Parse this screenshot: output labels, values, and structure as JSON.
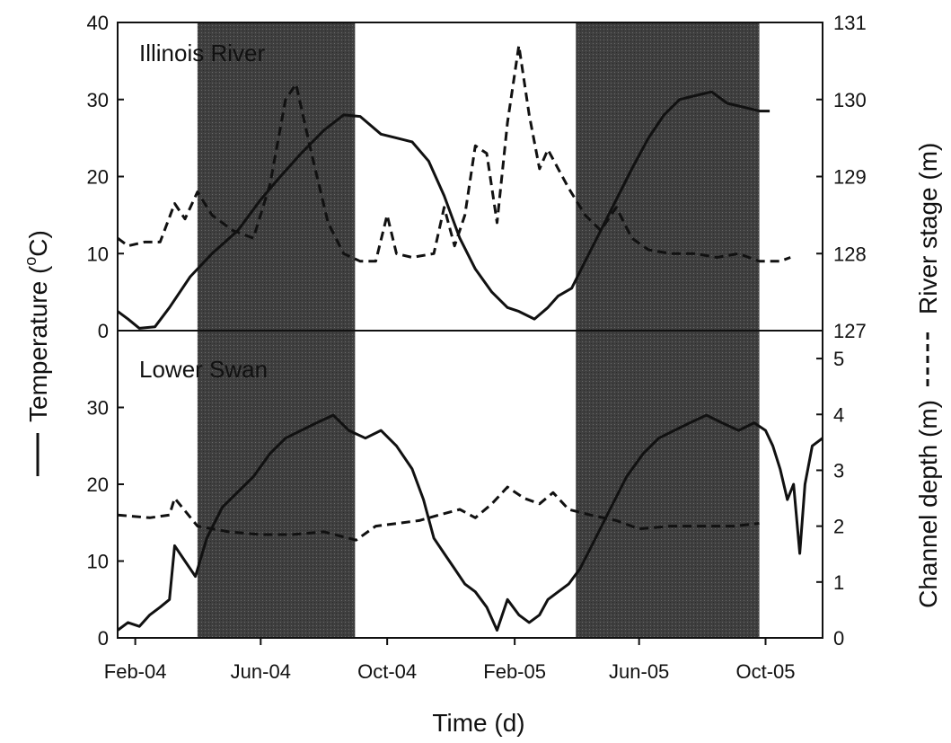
{
  "chart_data": {
    "type": "line",
    "xlabel": "Time (d)",
    "x_tick_labels": [
      "Feb-04",
      "Jun-04",
      "Oct-04",
      "Feb-05",
      "Jun-05",
      "Oct-05"
    ],
    "x_tick_dates": [
      "2004-02-01",
      "2004-06-01",
      "2004-10-01",
      "2005-02-01",
      "2005-06-01",
      "2005-10-01"
    ],
    "x_range": [
      "2004-01-15",
      "2005-11-25"
    ],
    "shaded_periods": [
      [
        "2004-04-01",
        "2004-08-31"
      ],
      [
        "2005-04-01",
        "2005-09-25"
      ]
    ],
    "left_axis_label": {
      "prefix": "Temperature (",
      "sup": "o",
      "suffix": "C)"
    },
    "right_axis_label": {
      "top": "River stage (m)",
      "bottom": "Channel depth (m)"
    },
    "panels": [
      {
        "label": "Illinois River",
        "y_left_range": [
          0,
          40
        ],
        "y_left_ticks": [
          "0",
          "10",
          "20",
          "30",
          "40"
        ],
        "y_right_range": [
          127,
          131
        ],
        "y_right_ticks": [
          "127",
          "128",
          "129",
          "130",
          "131"
        ],
        "series": [
          {
            "axis": "left",
            "style": "solid",
            "points": [
              [
                "2004-01-15",
                2.5
              ],
              [
                "2004-01-25",
                1.5
              ],
              [
                "2004-02-05",
                0.3
              ],
              [
                "2004-02-20",
                0.5
              ],
              [
                "2004-03-05",
                3
              ],
              [
                "2004-03-25",
                7
              ],
              [
                "2004-04-15",
                10
              ],
              [
                "2004-05-10",
                13
              ],
              [
                "2004-06-01",
                17
              ],
              [
                "2004-06-20",
                20
              ],
              [
                "2004-07-10",
                23
              ],
              [
                "2004-08-01",
                26
              ],
              [
                "2004-08-20",
                28
              ],
              [
                "2004-09-05",
                27.8
              ],
              [
                "2004-09-25",
                25.5
              ],
              [
                "2004-10-10",
                25
              ],
              [
                "2004-10-25",
                24.5
              ],
              [
                "2004-11-10",
                22
              ],
              [
                "2004-11-25",
                17.5
              ],
              [
                "2004-12-10",
                12
              ],
              [
                "2004-12-25",
                8
              ],
              [
                "2005-01-10",
                5
              ],
              [
                "2005-01-25",
                3
              ],
              [
                "2005-02-05",
                2.5
              ],
              [
                "2005-02-20",
                1.5
              ],
              [
                "2005-03-05",
                3
              ],
              [
                "2005-03-15",
                4.5
              ],
              [
                "2005-03-28",
                5.5
              ],
              [
                "2005-04-10",
                9
              ],
              [
                "2005-04-25",
                13
              ],
              [
                "2005-05-10",
                17
              ],
              [
                "2005-05-25",
                21
              ],
              [
                "2005-06-10",
                25
              ],
              [
                "2005-06-25",
                28
              ],
              [
                "2005-07-10",
                30
              ],
              [
                "2005-07-25",
                30.5
              ],
              [
                "2005-08-10",
                31
              ],
              [
                "2005-08-25",
                29.5
              ],
              [
                "2005-09-10",
                29
              ],
              [
                "2005-09-25",
                28.5
              ],
              [
                "2005-10-05",
                28.5
              ]
            ]
          },
          {
            "axis": "right",
            "style": "dashed",
            "points": [
              [
                "2004-01-15",
                128.2
              ],
              [
                "2004-01-25",
                128.1
              ],
              [
                "2004-02-10",
                128.15
              ],
              [
                "2004-02-25",
                128.15
              ],
              [
                "2004-03-10",
                128.65
              ],
              [
                "2004-03-20",
                128.45
              ],
              [
                "2004-04-01",
                128.8
              ],
              [
                "2004-04-15",
                128.5
              ],
              [
                "2004-05-05",
                128.3
              ],
              [
                "2004-05-25",
                128.2
              ],
              [
                "2004-06-10",
                128.9
              ],
              [
                "2004-06-25",
                130.0
              ],
              [
                "2004-07-05",
                130.2
              ],
              [
                "2004-07-20",
                129.3
              ],
              [
                "2004-08-05",
                128.4
              ],
              [
                "2004-08-20",
                128.0
              ],
              [
                "2004-09-05",
                127.9
              ],
              [
                "2004-09-20",
                127.9
              ],
              [
                "2004-10-01",
                128.5
              ],
              [
                "2004-10-10",
                128.0
              ],
              [
                "2004-10-25",
                127.95
              ],
              [
                "2004-11-15",
                128.0
              ],
              [
                "2004-11-25",
                128.6
              ],
              [
                "2004-12-05",
                128.1
              ],
              [
                "2004-12-15",
                128.5
              ],
              [
                "2004-12-25",
                129.4
              ],
              [
                "2005-01-05",
                129.3
              ],
              [
                "2005-01-15",
                128.4
              ],
              [
                "2005-01-25",
                129.7
              ],
              [
                "2005-02-05",
                130.7
              ],
              [
                "2005-02-15",
                129.8
              ],
              [
                "2005-02-25",
                129.1
              ],
              [
                "2005-03-05",
                129.35
              ],
              [
                "2005-03-15",
                129.1
              ],
              [
                "2005-03-25",
                128.85
              ],
              [
                "2005-04-10",
                128.5
              ],
              [
                "2005-04-25",
                128.3
              ],
              [
                "2005-05-10",
                128.6
              ],
              [
                "2005-05-25",
                128.2
              ],
              [
                "2005-06-10",
                128.05
              ],
              [
                "2005-07-01",
                128.0
              ],
              [
                "2005-07-25",
                128.0
              ],
              [
                "2005-08-15",
                127.95
              ],
              [
                "2005-09-05",
                128.0
              ],
              [
                "2005-09-25",
                127.9
              ],
              [
                "2005-10-15",
                127.9
              ],
              [
                "2005-10-25",
                127.95
              ]
            ]
          }
        ]
      },
      {
        "label": "Lower Swan",
        "y_left_range": [
          0,
          40
        ],
        "y_left_ticks": [
          "0",
          "10",
          "20",
          "30"
        ],
        "y_right_range": [
          0,
          5.5
        ],
        "y_right_ticks": [
          "0",
          "1",
          "2",
          "3",
          "4",
          "5"
        ],
        "series": [
          {
            "axis": "left",
            "style": "solid",
            "points": [
              [
                "2004-01-15",
                1
              ],
              [
                "2004-01-25",
                2
              ],
              [
                "2004-02-05",
                1.5
              ],
              [
                "2004-02-15",
                3
              ],
              [
                "2004-02-25",
                4
              ],
              [
                "2004-03-05",
                5
              ],
              [
                "2004-03-10",
                12
              ],
              [
                "2004-03-20",
                10
              ],
              [
                "2004-03-30",
                8
              ],
              [
                "2004-04-10",
                13
              ],
              [
                "2004-04-25",
                17
              ],
              [
                "2004-05-10",
                19
              ],
              [
                "2004-05-25",
                21
              ],
              [
                "2004-06-10",
                24
              ],
              [
                "2004-06-25",
                26
              ],
              [
                "2004-07-10",
                27
              ],
              [
                "2004-07-25",
                28
              ],
              [
                "2004-08-10",
                29
              ],
              [
                "2004-08-25",
                27
              ],
              [
                "2004-09-10",
                26
              ],
              [
                "2004-09-25",
                27
              ],
              [
                "2004-10-10",
                25
              ],
              [
                "2004-10-25",
                22
              ],
              [
                "2004-11-05",
                18
              ],
              [
                "2004-11-15",
                13
              ],
              [
                "2004-11-25",
                11
              ],
              [
                "2004-12-05",
                9
              ],
              [
                "2004-12-15",
                7
              ],
              [
                "2004-12-25",
                6
              ],
              [
                "2005-01-05",
                4
              ],
              [
                "2005-01-15",
                1
              ],
              [
                "2005-01-25",
                5
              ],
              [
                "2005-02-05",
                3
              ],
              [
                "2005-02-15",
                2
              ],
              [
                "2005-02-25",
                3
              ],
              [
                "2005-03-05",
                5
              ],
              [
                "2005-03-15",
                6
              ],
              [
                "2005-03-25",
                7
              ],
              [
                "2005-04-05",
                9
              ],
              [
                "2005-04-20",
                13
              ],
              [
                "2005-05-05",
                17
              ],
              [
                "2005-05-20",
                21
              ],
              [
                "2005-06-05",
                24
              ],
              [
                "2005-06-20",
                26
              ],
              [
                "2005-07-05",
                27
              ],
              [
                "2005-07-20",
                28
              ],
              [
                "2005-08-05",
                29
              ],
              [
                "2005-08-20",
                28
              ],
              [
                "2005-09-05",
                27
              ],
              [
                "2005-09-20",
                28
              ],
              [
                "2005-10-01",
                27
              ],
              [
                "2005-10-08",
                25
              ],
              [
                "2005-10-15",
                22
              ],
              [
                "2005-10-22",
                18
              ],
              [
                "2005-10-28",
                20
              ],
              [
                "2005-11-03",
                11
              ],
              [
                "2005-11-08",
                20
              ],
              [
                "2005-11-15",
                25
              ],
              [
                "2005-11-25",
                26
              ]
            ]
          },
          {
            "axis": "right",
            "style": "dashed",
            "points": [
              [
                "2004-01-15",
                2.2
              ],
              [
                "2004-02-15",
                2.15
              ],
              [
                "2004-03-05",
                2.2
              ],
              [
                "2004-03-10",
                2.5
              ],
              [
                "2004-04-01",
                2.0
              ],
              [
                "2004-05-01",
                1.9
              ],
              [
                "2004-06-01",
                1.85
              ],
              [
                "2004-07-01",
                1.85
              ],
              [
                "2004-08-01",
                1.9
              ],
              [
                "2004-09-01",
                1.75
              ],
              [
                "2004-09-20",
                2.0
              ],
              [
                "2004-11-01",
                2.1
              ],
              [
                "2004-11-20",
                2.2
              ],
              [
                "2004-12-10",
                2.3
              ],
              [
                "2004-12-25",
                2.15
              ],
              [
                "2005-01-10",
                2.4
              ],
              [
                "2005-01-25",
                2.7
              ],
              [
                "2005-02-10",
                2.5
              ],
              [
                "2005-02-25",
                2.4
              ],
              [
                "2005-03-10",
                2.6
              ],
              [
                "2005-03-25",
                2.3
              ],
              [
                "2005-04-15",
                2.2
              ],
              [
                "2005-05-10",
                2.1
              ],
              [
                "2005-06-01",
                1.95
              ],
              [
                "2005-07-01",
                2.0
              ],
              [
                "2005-08-01",
                2.0
              ],
              [
                "2005-09-01",
                2.0
              ],
              [
                "2005-09-25",
                2.05
              ]
            ]
          }
        ]
      }
    ]
  }
}
